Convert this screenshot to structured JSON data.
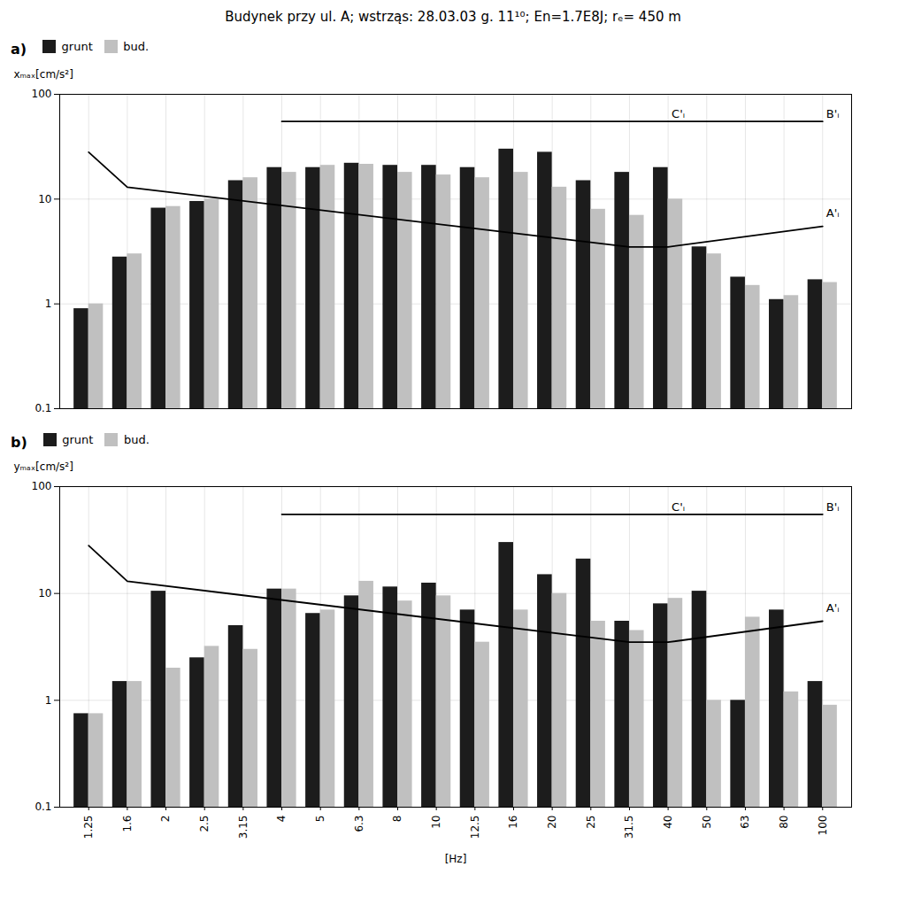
{
  "chart_data": [
    {
      "type": "bar",
      "title": "Budynek przy ul. A;   wstrząs: 28.03.03 g. 11¹⁰;   En=1.7E8J; rₑ= 450 m",
      "subtitle": "a)",
      "ylabel": "xₘₐₓ[cm/s²]",
      "categories": [
        "1.25",
        "1.6",
        "2",
        "2.5",
        "3.15",
        "4",
        "5",
        "6.3",
        "8",
        "10",
        "12.5",
        "16",
        "20",
        "25",
        "31.5",
        "40",
        "50",
        "63",
        "80",
        "100"
      ],
      "series": [
        {
          "name": "grunt",
          "color": "#1c1c1c",
          "values": [
            0.9,
            2.8,
            8.2,
            9.5,
            15.0,
            20.0,
            20.0,
            22.0,
            21.0,
            21.0,
            20.0,
            30.0,
            28.0,
            15.0,
            18.0,
            20.0,
            3.5,
            1.8,
            1.1,
            1.7
          ]
        },
        {
          "name": "bud.",
          "color": "#c0c0c0",
          "values": [
            1.0,
            3.0,
            8.5,
            10.0,
            16.0,
            18.0,
            21.0,
            21.5,
            18.0,
            17.0,
            16.0,
            18.0,
            13.0,
            8.0,
            7.0,
            10.0,
            3.0,
            1.5,
            1.2,
            1.6
          ]
        },
        {
          "type": "line",
          "x": [
            "4",
            "100"
          ],
          "values": [
            55.0,
            55.0
          ]
        },
        {
          "type": "line",
          "x": [
            "1.25",
            "1.6",
            "31.5",
            "40",
            "100"
          ],
          "values": [
            28.0,
            13.0,
            3.5,
            3.5,
            5.5
          ]
        }
      ],
      "annotations": [
        {
          "text": "C'ᵢ",
          "x": "40",
          "y": 57
        },
        {
          "text": "B'ᵢ",
          "x": "100",
          "y": 57
        },
        {
          "text": "A'ᵢ",
          "x": "100",
          "y": 6.5
        }
      ],
      "log": "y",
      "ylim": [
        0.1,
        100
      ],
      "yticks": [
        0.1,
        1,
        10,
        100
      ],
      "grid": true,
      "legend": "top",
      "tick_labels": "y"
    },
    {
      "type": "bar",
      "subtitle": "b)",
      "ylabel": "yₘₐₓ[cm/s²]",
      "xlabel": "[Hz]",
      "categories": [
        "1.25",
        "1.6",
        "2",
        "2.5",
        "3.15",
        "4",
        "5",
        "6.3",
        "8",
        "10",
        "12.5",
        "16",
        "20",
        "25",
        "31.5",
        "40",
        "50",
        "63",
        "80",
        "100"
      ],
      "series": [
        {
          "name": "grunt",
          "color": "#1c1c1c",
          "values": [
            0.75,
            1.5,
            10.5,
            2.5,
            5.0,
            11.0,
            6.5,
            9.5,
            11.5,
            12.5,
            7.0,
            30.0,
            15.0,
            21.0,
            5.5,
            8.0,
            10.5,
            1.0,
            7.0,
            1.5
          ]
        },
        {
          "name": "bud.",
          "color": "#c0c0c0",
          "values": [
            0.75,
            1.5,
            2.0,
            3.2,
            3.0,
            11.0,
            7.0,
            13.0,
            8.5,
            9.5,
            3.5,
            7.0,
            10.0,
            5.5,
            4.5,
            9.0,
            1.0,
            6.0,
            1.2,
            0.9
          ]
        },
        {
          "type": "line",
          "x": [
            "4",
            "100"
          ],
          "values": [
            55.0,
            55.0
          ]
        },
        {
          "type": "line",
          "x": [
            "1.25",
            "1.6",
            "31.5",
            "40",
            "100"
          ],
          "values": [
            28.0,
            13.0,
            3.5,
            3.5,
            5.5
          ]
        }
      ],
      "annotations": [
        {
          "text": "C'ᵢ",
          "x": "40",
          "y": 57
        },
        {
          "text": "B'ᵢ",
          "x": "100",
          "y": 57
        },
        {
          "text": "A'ᵢ",
          "x": "100",
          "y": 6.5
        }
      ],
      "log": "y",
      "ylim": [
        0.1,
        100
      ],
      "yticks": [
        0.1,
        1,
        10,
        100
      ],
      "grid": true,
      "legend": "top"
    }
  ]
}
